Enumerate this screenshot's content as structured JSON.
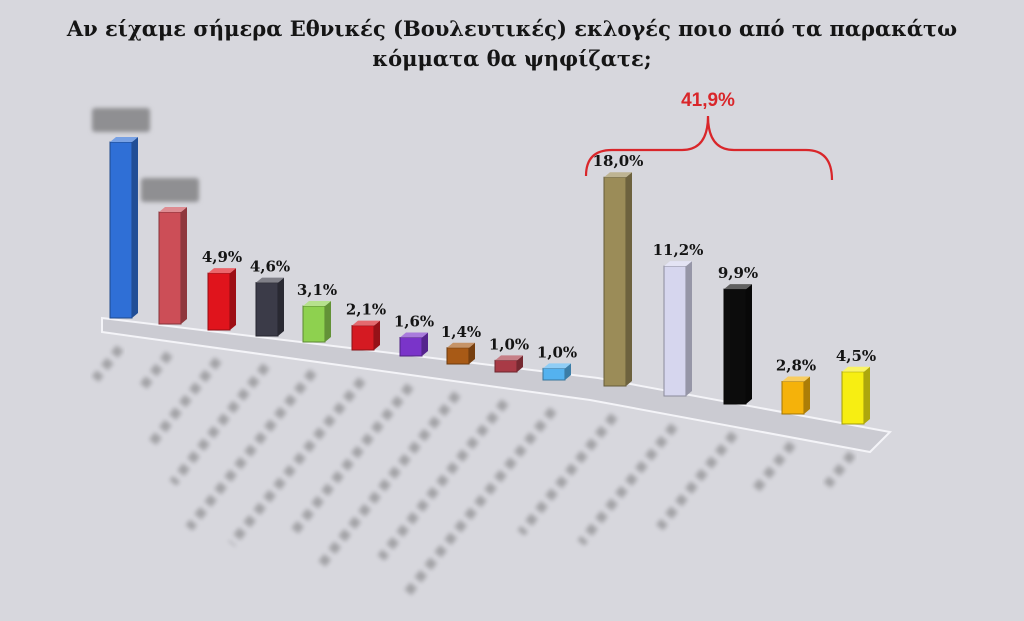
{
  "chart_data": {
    "type": "bar",
    "title": "Αν είχαμε σήμερα Εθνικές (Βουλευτικές) εκλογές ποιο από τα παρακάτω κόμματα θα ψηφίζατε;",
    "categories": [
      "",
      "",
      "",
      "",
      "",
      "",
      "",
      "",
      "",
      "",
      "",
      "",
      "",
      "",
      ""
    ],
    "values": [
      null,
      null,
      4.9,
      4.6,
      3.1,
      2.1,
      1.6,
      1.4,
      1.0,
      1.0,
      18.0,
      11.2,
      9.9,
      2.8,
      4.5
    ],
    "value_labels": [
      "",
      "",
      "4,9%",
      "4,6%",
      "3,1%",
      "2,1%",
      "1,6%",
      "1,4%",
      "1,0%",
      "1,0%",
      "18,0%",
      "11,2%",
      "9,9%",
      "2,8%",
      "4,5%"
    ],
    "colors": [
      "#2f6fd6",
      "#cc4e57",
      "#e0141c",
      "#3b3b48",
      "#8ed14f",
      "#d51a22",
      "#7a34c9",
      "#a85a16",
      "#a83a46",
      "#54b2ef",
      "#9b8c58",
      "#d6d6ee",
      "#0c0c0c",
      "#f5b20a",
      "#f7ee12"
    ],
    "bracket_label": "41,9%",
    "annotation_color": "#d9262a",
    "xlabel": "",
    "ylabel": ""
  }
}
